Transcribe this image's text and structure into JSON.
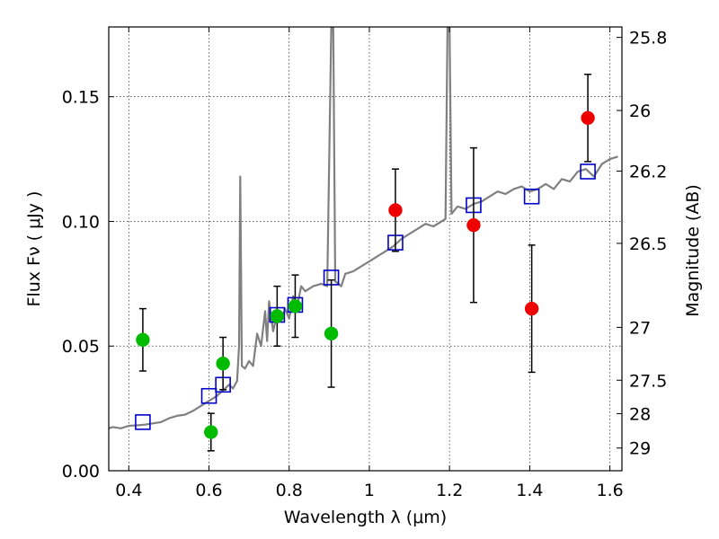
{
  "chart_data": {
    "type": "scatter",
    "xlabel": "Wavelength  λ (μm)",
    "ylabel": "Flux  Fν  ( μJy )",
    "y2label": "Magnitude (AB)",
    "xlim": [
      0.35,
      1.63
    ],
    "ylim": [
      0.0,
      0.178
    ],
    "grid": true,
    "x_ticks": [
      0.4,
      0.6,
      0.8,
      1.0,
      1.2,
      1.4,
      1.6
    ],
    "x_tick_labels": [
      "0.4",
      "0.6",
      "0.8",
      "1",
      "1.2",
      "1.4",
      "1.6"
    ],
    "y_ticks": [
      0.0,
      0.05,
      0.1,
      0.15
    ],
    "y_tick_labels": [
      "0.00",
      "0.05",
      "0.10",
      "0.15"
    ],
    "y2_ticks": [
      {
        "label": "25.8",
        "flux": 0.1738
      },
      {
        "label": "26",
        "flux": 0.1445
      },
      {
        "label": "26.2",
        "flux": 0.1202
      },
      {
        "label": "26.5",
        "flux": 0.0912
      },
      {
        "label": "27",
        "flux": 0.0575
      },
      {
        "label": "27.5",
        "flux": 0.0363
      },
      {
        "label": "28",
        "flux": 0.0229
      },
      {
        "label": "29",
        "flux": 0.0091
      }
    ],
    "spectrum": {
      "color": "#808080",
      "points": [
        [
          0.35,
          0.017
        ],
        [
          0.36,
          0.0175
        ],
        [
          0.38,
          0.017
        ],
        [
          0.4,
          0.018
        ],
        [
          0.42,
          0.0182
        ],
        [
          0.44,
          0.0185
        ],
        [
          0.46,
          0.019
        ],
        [
          0.48,
          0.0195
        ],
        [
          0.5,
          0.021
        ],
        [
          0.52,
          0.022
        ],
        [
          0.54,
          0.0225
        ],
        [
          0.56,
          0.024
        ],
        [
          0.58,
          0.026
        ],
        [
          0.6,
          0.028
        ],
        [
          0.62,
          0.03
        ],
        [
          0.64,
          0.033
        ],
        [
          0.65,
          0.0345
        ],
        [
          0.66,
          0.033
        ],
        [
          0.67,
          0.036
        ],
        [
          0.675,
          0.05
        ],
        [
          0.678,
          0.118
        ],
        [
          0.682,
          0.042
        ],
        [
          0.69,
          0.041
        ],
        [
          0.7,
          0.044
        ],
        [
          0.71,
          0.042
        ],
        [
          0.72,
          0.055
        ],
        [
          0.73,
          0.05
        ],
        [
          0.74,
          0.064
        ],
        [
          0.745,
          0.052
        ],
        [
          0.75,
          0.068
        ],
        [
          0.76,
          0.056
        ],
        [
          0.77,
          0.063
        ],
        [
          0.78,
          0.06
        ],
        [
          0.79,
          0.065
        ],
        [
          0.8,
          0.061
        ],
        [
          0.81,
          0.07
        ],
        [
          0.82,
          0.066
        ],
        [
          0.83,
          0.074
        ],
        [
          0.84,
          0.072
        ],
        [
          0.85,
          0.073
        ],
        [
          0.86,
          0.074
        ],
        [
          0.88,
          0.075
        ],
        [
          0.895,
          0.074
        ],
        [
          0.905,
          0.1778
        ],
        [
          0.91,
          0.1778
        ],
        [
          0.915,
          0.076
        ],
        [
          0.93,
          0.074
        ],
        [
          0.94,
          0.079
        ],
        [
          0.96,
          0.08
        ],
        [
          0.98,
          0.082
        ],
        [
          1.0,
          0.084
        ],
        [
          1.02,
          0.086
        ],
        [
          1.04,
          0.088
        ],
        [
          1.06,
          0.09
        ],
        [
          1.08,
          0.093
        ],
        [
          1.1,
          0.095
        ],
        [
          1.12,
          0.097
        ],
        [
          1.14,
          0.099
        ],
        [
          1.16,
          0.098
        ],
        [
          1.18,
          0.1
        ],
        [
          1.19,
          0.101
        ],
        [
          1.195,
          0.1778
        ],
        [
          1.2,
          0.1778
        ],
        [
          1.205,
          0.103
        ],
        [
          1.22,
          0.106
        ],
        [
          1.24,
          0.105
        ],
        [
          1.26,
          0.107
        ],
        [
          1.28,
          0.108
        ],
        [
          1.3,
          0.11
        ],
        [
          1.32,
          0.112
        ],
        [
          1.34,
          0.111
        ],
        [
          1.36,
          0.113
        ],
        [
          1.38,
          0.114
        ],
        [
          1.4,
          0.112
        ],
        [
          1.42,
          0.113
        ],
        [
          1.44,
          0.115
        ],
        [
          1.46,
          0.113
        ],
        [
          1.48,
          0.117
        ],
        [
          1.5,
          0.116
        ],
        [
          1.52,
          0.12
        ],
        [
          1.54,
          0.121
        ],
        [
          1.56,
          0.118
        ],
        [
          1.58,
          0.123
        ],
        [
          1.6,
          0.125
        ],
        [
          1.62,
          0.126
        ]
      ]
    },
    "series": [
      {
        "marker": "square",
        "color": "#0000cc",
        "points": [
          {
            "x": 0.435,
            "y": 0.0195
          },
          {
            "x": 0.6,
            "y": 0.03
          },
          {
            "x": 0.635,
            "y": 0.0345
          },
          {
            "x": 0.77,
            "y": 0.0625
          },
          {
            "x": 0.815,
            "y": 0.0665
          },
          {
            "x": 0.905,
            "y": 0.0775
          },
          {
            "x": 1.065,
            "y": 0.0915
          },
          {
            "x": 1.26,
            "y": 0.1065
          },
          {
            "x": 1.405,
            "y": 0.11
          },
          {
            "x": 1.545,
            "y": 0.12
          }
        ]
      },
      {
        "marker": "circle",
        "color": "#00bb00",
        "points": [
          {
            "x": 0.435,
            "y": 0.0525,
            "yerr": 0.0125
          },
          {
            "x": 0.605,
            "y": 0.0155,
            "yerr": 0.0075
          },
          {
            "x": 0.635,
            "y": 0.043,
            "yerr": 0.0105
          },
          {
            "x": 0.77,
            "y": 0.062,
            "yerr": 0.012
          },
          {
            "x": 0.815,
            "y": 0.066,
            "yerr": 0.0125
          },
          {
            "x": 0.905,
            "y": 0.055,
            "yerr": 0.0215
          }
        ]
      },
      {
        "marker": "circle",
        "color": "#ee0000",
        "points": [
          {
            "x": 1.065,
            "y": 0.1045,
            "yerr": 0.0165
          },
          {
            "x": 1.26,
            "y": 0.0985,
            "yerr": 0.031
          },
          {
            "x": 1.405,
            "y": 0.065,
            "yerr": 0.0255
          },
          {
            "x": 1.545,
            "y": 0.1415,
            "yerr": 0.0175
          }
        ]
      }
    ]
  }
}
